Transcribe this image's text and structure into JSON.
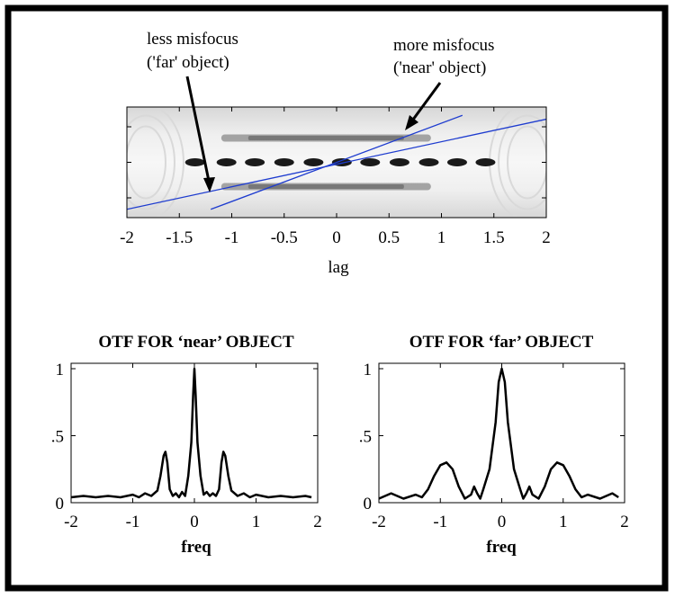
{
  "chart_data": [
    {
      "type": "heatmap",
      "xlabel": "lag",
      "xlim": [
        -2,
        2
      ],
      "x_ticks": [
        "-2",
        "-1.5",
        "-1",
        "-0.5",
        "0",
        "0.5",
        "1",
        "1.5",
        "2"
      ],
      "rows": [
        {
          "name": "center",
          "dark_lag_points": [
            -1.35,
            -1.05,
            -0.78,
            -0.5,
            -0.22,
            0.05,
            0.32,
            0.6,
            0.88,
            1.15,
            1.42
          ]
        },
        {
          "name": "upper",
          "dark_lag_range": [
            -1.1,
            0.9
          ]
        },
        {
          "name": "lower",
          "dark_lag_range": [
            -1.1,
            0.9
          ]
        }
      ],
      "lines": [
        {
          "label": "less misfocus\n('far' object)",
          "color": "#1e3ccf",
          "from": [
            -2,
            -0.85
          ],
          "to": [
            2,
            0.78
          ]
        },
        {
          "label": "more misfocus\n('near' object)",
          "color": "#1e3ccf",
          "from": [
            -1.2,
            -0.85
          ],
          "to": [
            1.2,
            0.85
          ]
        }
      ],
      "annotations": [
        {
          "text_lines": [
            "less misfocus",
            "('far' object)"
          ]
        },
        {
          "text_lines": [
            "more misfocus",
            "('near' object)"
          ]
        }
      ]
    },
    {
      "type": "line",
      "title": "OTF FOR ‘near’ OBJECT",
      "xlabel": "freq",
      "xlim": [
        -2,
        2
      ],
      "ylim": [
        0,
        1
      ],
      "x_ticks": [
        "-2",
        "-1",
        "0",
        "1",
        "2"
      ],
      "y_ticks": [
        "0",
        ".5",
        "1"
      ],
      "series": [
        {
          "x": [
            -2.0,
            -1.8,
            -1.6,
            -1.4,
            -1.2,
            -1.0,
            -0.9,
            -0.8,
            -0.7,
            -0.6,
            -0.55,
            -0.5,
            -0.47,
            -0.44,
            -0.4,
            -0.35,
            -0.3,
            -0.25,
            -0.2,
            -0.15,
            -0.1,
            -0.05,
            -0.02,
            0.0,
            0.02,
            0.05,
            0.1,
            0.15,
            0.2,
            0.25,
            0.3,
            0.35,
            0.4,
            0.44,
            0.47,
            0.5,
            0.55,
            0.6,
            0.7,
            0.8,
            0.9,
            1.0,
            1.2,
            1.4,
            1.6,
            1.8,
            1.9
          ],
          "y": [
            0.04,
            0.05,
            0.04,
            0.05,
            0.04,
            0.06,
            0.04,
            0.07,
            0.05,
            0.09,
            0.2,
            0.35,
            0.38,
            0.3,
            0.1,
            0.05,
            0.07,
            0.04,
            0.08,
            0.05,
            0.2,
            0.45,
            0.8,
            1.0,
            0.8,
            0.45,
            0.2,
            0.06,
            0.08,
            0.05,
            0.07,
            0.05,
            0.1,
            0.3,
            0.38,
            0.35,
            0.2,
            0.09,
            0.05,
            0.07,
            0.04,
            0.06,
            0.04,
            0.05,
            0.04,
            0.05,
            0.04
          ]
        }
      ]
    },
    {
      "type": "line",
      "title": "OTF FOR ‘far’ OBJECT",
      "xlabel": "freq",
      "xlim": [
        -2,
        2
      ],
      "ylim": [
        0,
        1
      ],
      "x_ticks": [
        "-2",
        "-1",
        "0",
        "1",
        "2"
      ],
      "y_ticks": [
        "0",
        ".5",
        "1"
      ],
      "series": [
        {
          "x": [
            -2.0,
            -1.8,
            -1.6,
            -1.4,
            -1.3,
            -1.2,
            -1.1,
            -1.0,
            -0.9,
            -0.8,
            -0.7,
            -0.6,
            -0.5,
            -0.45,
            -0.4,
            -0.35,
            -0.3,
            -0.2,
            -0.1,
            -0.05,
            0.0,
            0.05,
            0.1,
            0.2,
            0.3,
            0.35,
            0.4,
            0.45,
            0.5,
            0.6,
            0.7,
            0.8,
            0.9,
            1.0,
            1.1,
            1.2,
            1.3,
            1.4,
            1.6,
            1.8,
            1.9
          ],
          "y": [
            0.03,
            0.07,
            0.03,
            0.06,
            0.04,
            0.1,
            0.2,
            0.28,
            0.3,
            0.25,
            0.12,
            0.03,
            0.06,
            0.12,
            0.07,
            0.03,
            0.1,
            0.25,
            0.6,
            0.9,
            1.0,
            0.9,
            0.6,
            0.25,
            0.1,
            0.03,
            0.07,
            0.12,
            0.06,
            0.03,
            0.12,
            0.25,
            0.3,
            0.28,
            0.2,
            0.1,
            0.04,
            0.06,
            0.03,
            0.07,
            0.04
          ]
        }
      ]
    }
  ]
}
